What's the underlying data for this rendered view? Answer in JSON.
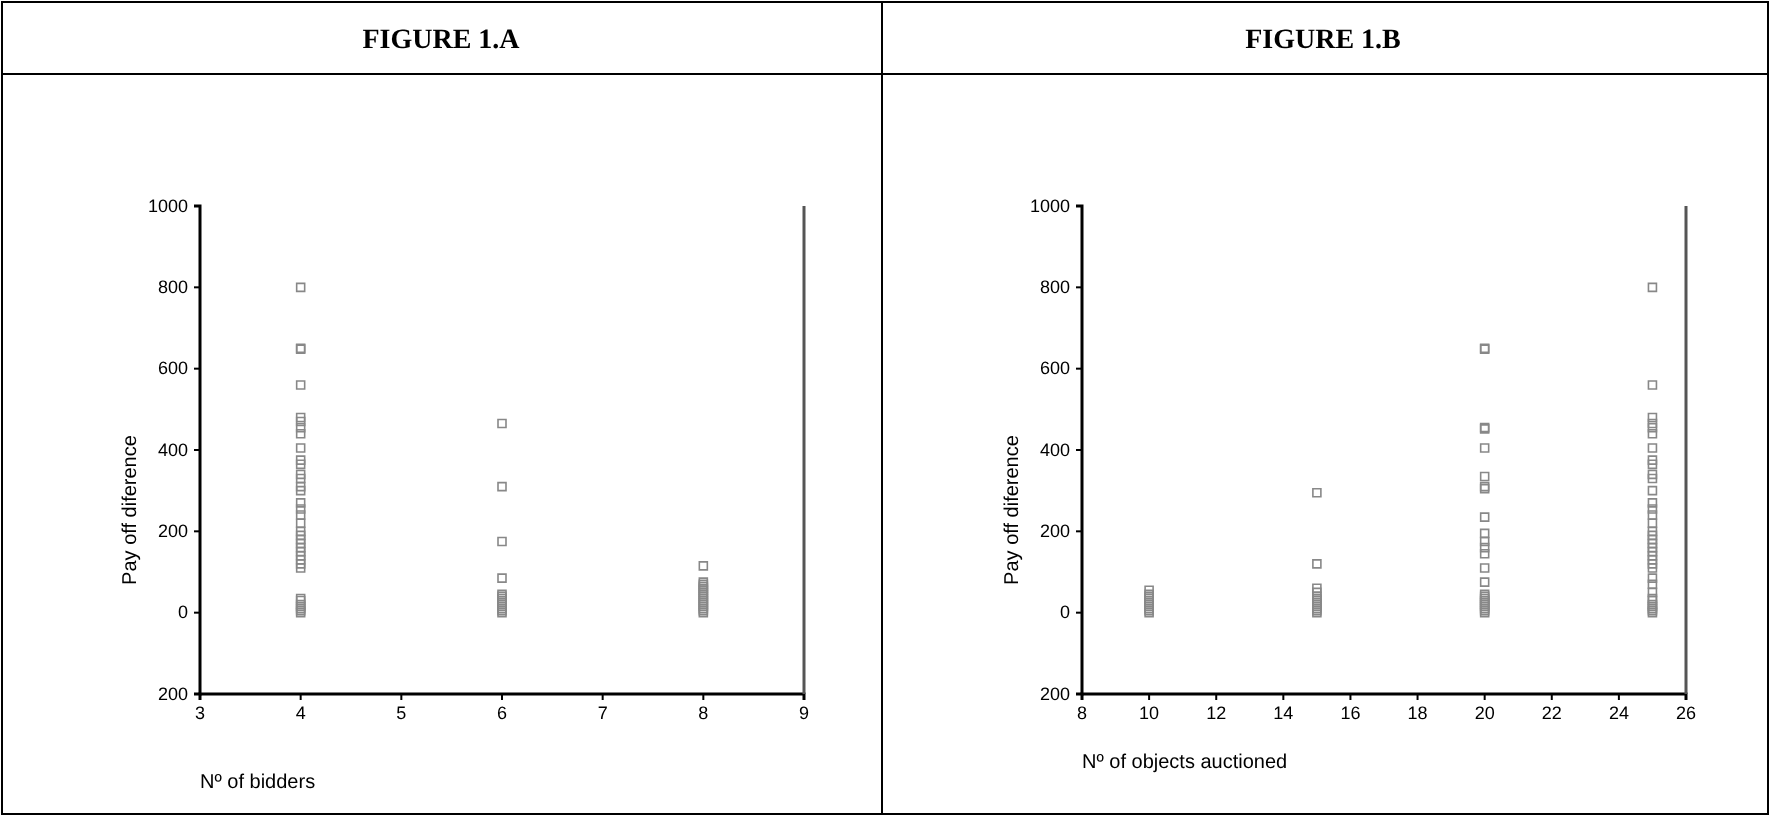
{
  "chart_data": [
    {
      "type": "scatter",
      "title": "FIGURE 1.A",
      "xlabel": "Nº of bidders",
      "ylabel": "Pay off diference",
      "xlim": [
        3,
        9
      ],
      "xticks": [
        3,
        4,
        5,
        6,
        7,
        8,
        9
      ],
      "ylim": [
        -200,
        1000
      ],
      "yticks": [
        {
          "value": -200,
          "label": "200"
        },
        0,
        200,
        400,
        600,
        800,
        1000
      ],
      "marker": "square",
      "series": [
        {
          "color": "#888888",
          "x": [
            4,
            4,
            4,
            4,
            4,
            4,
            4,
            4,
            4,
            4,
            4,
            4,
            4,
            4,
            4,
            4,
            4,
            4,
            4,
            4,
            4,
            4,
            4,
            4,
            4,
            4,
            4,
            4,
            4,
            4,
            4,
            4,
            4,
            4,
            4,
            4,
            6,
            6,
            6,
            6,
            6,
            6,
            6,
            6,
            6,
            6,
            6,
            6,
            6,
            6,
            8,
            8,
            8,
            8,
            8,
            8,
            8,
            8,
            8,
            8,
            8,
            8,
            8,
            8,
            8,
            8,
            8
          ],
          "values": [
            800,
            650,
            648,
            560,
            480,
            470,
            455,
            440,
            405,
            375,
            365,
            340,
            330,
            310,
            300,
            270,
            255,
            240,
            220,
            200,
            190,
            180,
            170,
            160,
            150,
            140,
            130,
            120,
            110,
            35,
            30,
            20,
            15,
            10,
            5,
            0,
            465,
            310,
            175,
            85,
            45,
            40,
            35,
            30,
            25,
            20,
            15,
            10,
            5,
            0,
            115,
            75,
            70,
            65,
            60,
            55,
            50,
            45,
            40,
            35,
            30,
            25,
            20,
            15,
            10,
            5,
            0
          ]
        }
      ]
    },
    {
      "type": "scatter",
      "title": "FIGURE 1.B",
      "xlabel": "Nº of objects auctioned",
      "ylabel": "Pay off diference",
      "xlim": [
        8,
        26
      ],
      "xticks": [
        8,
        10,
        12,
        14,
        16,
        18,
        20,
        22,
        24,
        26
      ],
      "ylim": [
        -200,
        1000
      ],
      "yticks": [
        {
          "value": -200,
          "label": "200"
        },
        0,
        200,
        400,
        600,
        800,
        1000
      ],
      "marker": "square",
      "series": [
        {
          "color": "#888888",
          "x": [
            10,
            10,
            10,
            10,
            10,
            10,
            10,
            10,
            10,
            10,
            10,
            15,
            15,
            15,
            15,
            15,
            15,
            15,
            15,
            15,
            15,
            15,
            15,
            15,
            20,
            20,
            20,
            20,
            20,
            20,
            20,
            20,
            20,
            20,
            20,
            20,
            20,
            20,
            20,
            20,
            20,
            20,
            20,
            20,
            20,
            20,
            20,
            20,
            20,
            25,
            25,
            25,
            25,
            25,
            25,
            25,
            25,
            25,
            25,
            25,
            25,
            25,
            25,
            25,
            25,
            25,
            25,
            25,
            25,
            25,
            25,
            25,
            25,
            25,
            25,
            25,
            25,
            25,
            25,
            25,
            25,
            25,
            25,
            25,
            25
          ],
          "values": [
            55,
            45,
            40,
            35,
            30,
            25,
            20,
            15,
            10,
            5,
            0,
            295,
            120,
            60,
            50,
            40,
            35,
            30,
            25,
            20,
            15,
            10,
            5,
            0,
            650,
            648,
            455,
            452,
            405,
            335,
            310,
            305,
            235,
            195,
            175,
            160,
            145,
            110,
            75,
            45,
            40,
            35,
            30,
            25,
            20,
            15,
            10,
            5,
            0,
            800,
            560,
            480,
            465,
            455,
            440,
            405,
            375,
            365,
            340,
            330,
            300,
            270,
            255,
            240,
            220,
            200,
            190,
            180,
            170,
            160,
            150,
            140,
            130,
            120,
            110,
            85,
            70,
            50,
            35,
            30,
            20,
            15,
            10,
            5,
            0
          ]
        }
      ]
    }
  ]
}
